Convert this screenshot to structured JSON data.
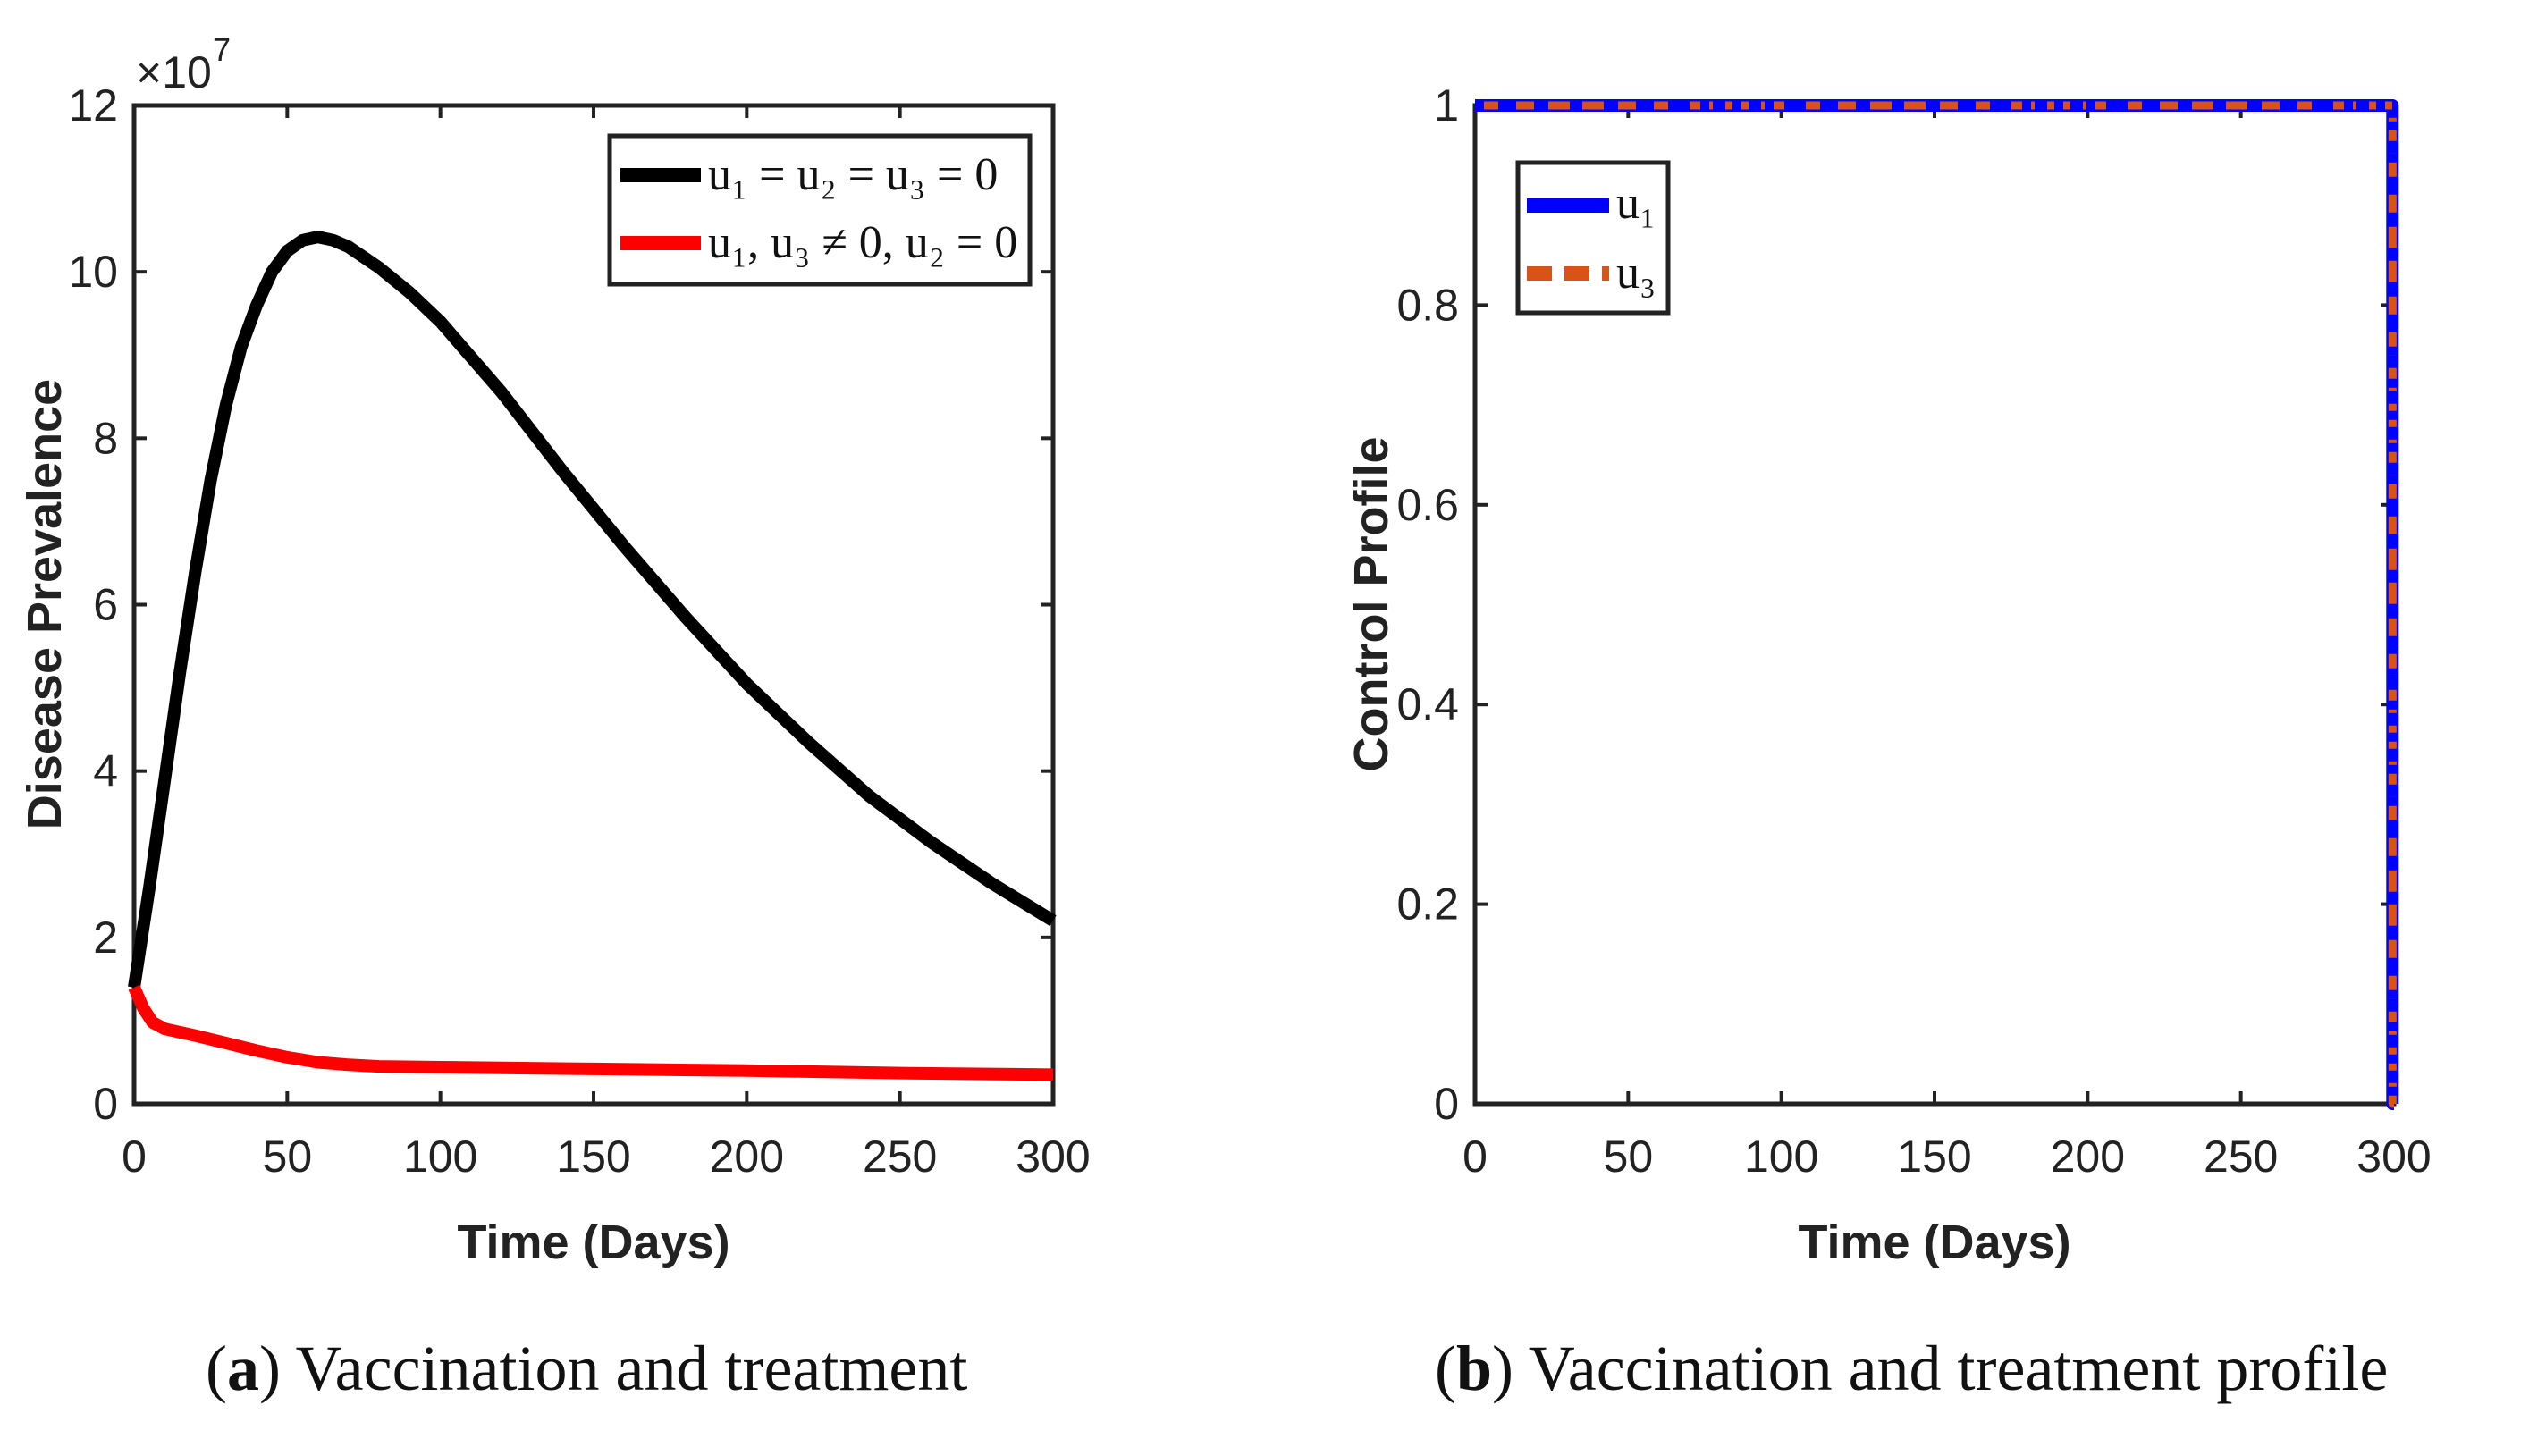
{
  "chart_data": [
    {
      "type": "line",
      "caption_label": "a",
      "caption_text": " Vaccination and treatment",
      "xlabel": "Time (Days)",
      "ylabel": "Disease Prevalence",
      "xlim": [
        0,
        300
      ],
      "ylim": [
        0,
        12
      ],
      "y_multiplier": "×10",
      "y_multiplier_exp": "7",
      "xticks": [
        "0",
        "50",
        "100",
        "150",
        "200",
        "250",
        "300"
      ],
      "yticks": [
        "0",
        "2",
        "4",
        "6",
        "8",
        "10",
        "12"
      ],
      "legend_position": "top-right",
      "series": [
        {
          "name": "u1 = u2 = u3 = 0",
          "legend_text": "u₁ = u₂ = u₃ = 0",
          "color": "#000000",
          "style": "solid",
          "x": [
            0,
            5,
            10,
            15,
            20,
            25,
            30,
            35,
            40,
            45,
            50,
            55,
            60,
            65,
            70,
            80,
            90,
            100,
            120,
            140,
            160,
            180,
            200,
            220,
            240,
            260,
            280,
            300
          ],
          "y": [
            1.4,
            2.6,
            3.9,
            5.2,
            6.4,
            7.5,
            8.4,
            9.1,
            9.6,
            10.0,
            10.25,
            10.38,
            10.42,
            10.38,
            10.3,
            10.05,
            9.75,
            9.4,
            8.55,
            7.6,
            6.7,
            5.85,
            5.05,
            4.35,
            3.7,
            3.15,
            2.65,
            2.2
          ]
        },
        {
          "name": "u1, u3 ≠ 0, u2 = 0",
          "legend_text": "u₁, u₃ ≠ 0, u₂ = 0",
          "color": "#ff0000",
          "style": "solid",
          "x": [
            0,
            3,
            6,
            10,
            20,
            30,
            40,
            50,
            60,
            70,
            80,
            100,
            150,
            200,
            250,
            300
          ],
          "y": [
            1.4,
            1.15,
            0.98,
            0.9,
            0.82,
            0.73,
            0.64,
            0.56,
            0.5,
            0.47,
            0.45,
            0.44,
            0.42,
            0.4,
            0.37,
            0.35
          ]
        }
      ]
    },
    {
      "type": "line",
      "caption_label": "b",
      "caption_text": " Vaccination and treatment profile",
      "xlabel": "Time (Days)",
      "ylabel": "Control Profile",
      "xlim": [
        0,
        300
      ],
      "ylim": [
        0,
        1
      ],
      "xticks": [
        "0",
        "50",
        "100",
        "150",
        "200",
        "250",
        "300"
      ],
      "yticks": [
        "0",
        "0.2",
        "0.4",
        "0.6",
        "0.8",
        "1"
      ],
      "legend_position": "top-left",
      "series": [
        {
          "name": "u1",
          "legend_text": "u₁",
          "color": "#0000ff",
          "style": "dotted",
          "x": [
            0,
            299.5,
            299.5,
            300
          ],
          "y": [
            1,
            1,
            0,
            0
          ]
        },
        {
          "name": "u3",
          "legend_text": "u₃",
          "color": "#d95319",
          "style": "dashed",
          "x": [
            0,
            299.5,
            299.5,
            300
          ],
          "y": [
            1,
            1,
            0,
            0
          ]
        }
      ]
    }
  ]
}
